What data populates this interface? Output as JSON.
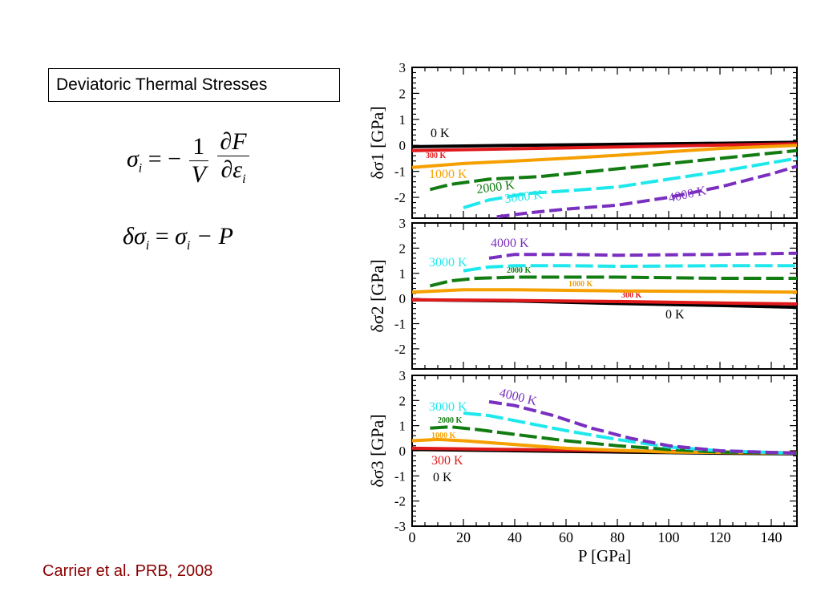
{
  "slide": {
    "title": "Deviatoric Thermal Stresses",
    "citation": "Carrier et al. PRB, 2008"
  },
  "equations": {
    "eq1": {
      "lhs": "σ",
      "sub": "i",
      "eq": "= −",
      "num1": "1",
      "den1": "V",
      "num2": "∂F",
      "den2": "∂ε",
      "den2_sub": "i"
    },
    "eq2": {
      "lhs": "δσ",
      "sub": "i",
      "eq": "=",
      "rhs": "σ",
      "rhs_sub": "i",
      "tail": "− P"
    }
  },
  "colors": {
    "0K": "#000000",
    "300K": "#e0191b",
    "1000K": "#f5a000",
    "2000K": "#127c12",
    "3000K": "#1ee8ec",
    "4000K": "#7a2fc0"
  },
  "chart_data": [
    {
      "type": "line",
      "ylabel": "δσ1 [GPa]",
      "xlim": [
        0,
        150
      ],
      "ylim": [
        -2.8,
        3
      ],
      "yticks": [
        -2,
        -1,
        0,
        1,
        2,
        3
      ],
      "series": [
        {
          "name": "0 K",
          "color": "#000000",
          "label_size": 16,
          "x": [
            0,
            40,
            80,
            120,
            150
          ],
          "y": [
            -0.05,
            0.0,
            0.04,
            0.08,
            0.12
          ]
        },
        {
          "name": "300 K",
          "color": "#e0191b",
          "label_size": 10,
          "x": [
            0,
            40,
            80,
            120,
            150
          ],
          "y": [
            -0.2,
            -0.13,
            -0.06,
            0.01,
            0.06
          ]
        },
        {
          "name": "1000 K",
          "color": "#f5a000",
          "label_size": 16,
          "x": [
            0,
            20,
            40,
            60,
            80,
            100,
            120,
            150
          ],
          "y": [
            -0.85,
            -0.7,
            -0.6,
            -0.5,
            -0.38,
            -0.25,
            -0.12,
            0.0
          ]
        },
        {
          "name": "2000 K",
          "color": "#127c12",
          "label_size": 16,
          "x": [
            7,
            15,
            30,
            50,
            70,
            90,
            110,
            130,
            150
          ],
          "y": [
            -1.7,
            -1.5,
            -1.3,
            -1.2,
            -1.0,
            -0.8,
            -0.6,
            -0.4,
            -0.2
          ]
        },
        {
          "name": "3000 K",
          "color": "#1ee8ec",
          "label_size": 16,
          "x": [
            20,
            30,
            45,
            60,
            80,
            100,
            120,
            150
          ],
          "y": [
            -2.4,
            -2.1,
            -1.85,
            -1.75,
            -1.6,
            -1.3,
            -1.0,
            -0.5
          ]
        },
        {
          "name": "4000 K",
          "color": "#7a2fc0",
          "label_size": 16,
          "x": [
            33,
            45,
            60,
            80,
            100,
            120,
            140,
            150
          ],
          "y": [
            -2.75,
            -2.6,
            -2.45,
            -2.3,
            -2.0,
            -1.6,
            -1.1,
            -0.8
          ]
        }
      ]
    },
    {
      "type": "line",
      "ylabel": "δσ2 [GPa]",
      "xlim": [
        0,
        150
      ],
      "ylim": [
        -2.8,
        3
      ],
      "yticks": [
        -2,
        -1,
        0,
        1,
        2,
        3
      ],
      "series": [
        {
          "name": "0 K",
          "color": "#000000",
          "label_size": 16,
          "x": [
            0,
            40,
            80,
            120,
            150
          ],
          "y": [
            -0.05,
            -0.1,
            -0.2,
            -0.28,
            -0.35
          ]
        },
        {
          "name": "300 K",
          "color": "#e0191b",
          "label_size": 10,
          "x": [
            0,
            40,
            80,
            120,
            150
          ],
          "y": [
            -0.05,
            -0.08,
            -0.12,
            -0.18,
            -0.22
          ]
        },
        {
          "name": "1000 K",
          "color": "#f5a000",
          "label_size": 10,
          "x": [
            0,
            20,
            40,
            80,
            120,
            150
          ],
          "y": [
            0.25,
            0.35,
            0.35,
            0.3,
            0.28,
            0.25
          ]
        },
        {
          "name": "2000 K",
          "color": "#127c12",
          "label_size": 10,
          "x": [
            7,
            15,
            25,
            40,
            80,
            120,
            150
          ],
          "y": [
            0.5,
            0.7,
            0.8,
            0.85,
            0.85,
            0.8,
            0.8
          ]
        },
        {
          "name": "3000 K",
          "color": "#1ee8ec",
          "label_size": 16,
          "x": [
            20,
            30,
            40,
            60,
            80,
            120,
            150
          ],
          "y": [
            1.1,
            1.25,
            1.3,
            1.3,
            1.28,
            1.3,
            1.3
          ]
        },
        {
          "name": "4000 K",
          "color": "#7a2fc0",
          "label_size": 16,
          "x": [
            30,
            40,
            60,
            80,
            120,
            150
          ],
          "y": [
            1.6,
            1.75,
            1.75,
            1.72,
            1.75,
            1.8
          ]
        }
      ]
    },
    {
      "type": "line",
      "ylabel": "δσ3 [GPa]",
      "xlabel": "P [GPa]",
      "xlim": [
        0,
        150
      ],
      "ylim": [
        -3,
        3
      ],
      "xticks": [
        0,
        20,
        40,
        60,
        80,
        100,
        120,
        140
      ],
      "yticks": [
        -3,
        -2,
        -1,
        0,
        1,
        2,
        3
      ],
      "series": [
        {
          "name": "0 K",
          "color": "#000000",
          "label_size": 16,
          "x": [
            0,
            40,
            80,
            120,
            150
          ],
          "y": [
            0.05,
            0.0,
            -0.05,
            -0.1,
            -0.12
          ]
        },
        {
          "name": "300 K",
          "color": "#e0191b",
          "label_size": 16,
          "x": [
            0,
            40,
            80,
            120,
            150
          ],
          "y": [
            0.1,
            0.05,
            0.0,
            -0.05,
            -0.08
          ]
        },
        {
          "name": "1000 K",
          "color": "#f5a000",
          "label_size": 10,
          "x": [
            0,
            10,
            20,
            40,
            60,
            80,
            100,
            150
          ],
          "y": [
            0.4,
            0.45,
            0.4,
            0.25,
            0.1,
            0.02,
            -0.05,
            -0.1
          ]
        },
        {
          "name": "2000 K",
          "color": "#127c12",
          "label_size": 10,
          "x": [
            7,
            15,
            25,
            40,
            60,
            80,
            100,
            120,
            150
          ],
          "y": [
            0.9,
            0.95,
            0.85,
            0.65,
            0.4,
            0.2,
            0.05,
            -0.05,
            -0.1
          ]
        },
        {
          "name": "3000 K",
          "color": "#1ee8ec",
          "label_size": 16,
          "x": [
            20,
            30,
            45,
            60,
            80,
            100,
            120,
            150
          ],
          "y": [
            1.5,
            1.4,
            1.1,
            0.8,
            0.45,
            0.15,
            0.0,
            -0.1
          ]
        },
        {
          "name": "4000 K",
          "color": "#7a2fc0",
          "label_size": 16,
          "x": [
            30,
            40,
            55,
            70,
            85,
            100,
            120,
            150
          ],
          "y": [
            1.95,
            1.8,
            1.4,
            0.9,
            0.5,
            0.2,
            0.0,
            -0.1
          ]
        }
      ]
    }
  ]
}
